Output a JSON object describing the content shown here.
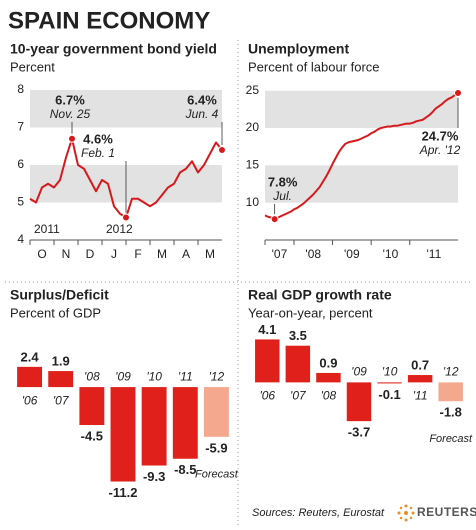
{
  "title": "SPAIN ECONOMY",
  "chart_data": [
    {
      "type": "line",
      "title": "10-year government bond yield",
      "subtitle": "Percent",
      "categories": [
        "O",
        null,
        null,
        null,
        "N",
        null,
        null,
        null,
        "D",
        null,
        null,
        null,
        "J",
        null,
        null,
        null,
        "F",
        null,
        null,
        null,
        "M",
        null,
        null,
        null,
        "A",
        null,
        null,
        null,
        "M",
        null,
        null,
        null,
        null
      ],
      "year_labels": [
        "2011",
        null,
        null,
        null,
        null,
        null,
        null,
        null,
        null,
        null,
        null,
        null,
        "2012",
        null,
        null,
        null,
        null,
        null,
        null,
        null,
        null,
        null,
        null,
        null,
        null,
        null,
        null,
        null,
        null,
        null,
        null,
        null,
        null
      ],
      "values": [
        5.1,
        5.0,
        5.4,
        5.5,
        5.4,
        5.6,
        6.2,
        6.7,
        6.0,
        5.9,
        5.6,
        5.3,
        5.6,
        5.5,
        4.9,
        4.7,
        4.6,
        5.1,
        5.1,
        5.0,
        4.9,
        5.0,
        5.2,
        5.4,
        5.5,
        5.8,
        5.9,
        6.1,
        5.8,
        6.0,
        6.3,
        6.6,
        6.4
      ],
      "value_labels": [
        null,
        null,
        null,
        null,
        null,
        null,
        null,
        "6.7%",
        null,
        null,
        null,
        null,
        null,
        null,
        null,
        null,
        "4.6%",
        null,
        null,
        null,
        null,
        null,
        null,
        null,
        null,
        null,
        null,
        null,
        null,
        null,
        null,
        null,
        "6.4%"
      ],
      "date_labels": [
        null,
        null,
        null,
        null,
        null,
        null,
        null,
        "Nov. 25",
        null,
        null,
        null,
        null,
        null,
        null,
        null,
        null,
        "Feb. 1",
        null,
        null,
        null,
        null,
        null,
        null,
        null,
        null,
        null,
        null,
        null,
        null,
        null,
        null,
        null,
        "Jun. 4"
      ],
      "color": "#d7191c",
      "ylim": [
        4,
        8
      ],
      "yticks": [
        4,
        5,
        6,
        7,
        8
      ],
      "shading": true
    },
    {
      "type": "line",
      "title": "Unemployment",
      "subtitle": "Percent of labour force",
      "categories": [
        "'07",
        null,
        null,
        null,
        null,
        null,
        null,
        null,
        null,
        "'08",
        null,
        null,
        null,
        null,
        null,
        null,
        null,
        null,
        null,
        null,
        null,
        "'09",
        null,
        null,
        null,
        null,
        null,
        null,
        null,
        null,
        null,
        null,
        null,
        "'10",
        null,
        null,
        null,
        null,
        null,
        null,
        null,
        null,
        null,
        null,
        null,
        "'11",
        null,
        null,
        null,
        null,
        null,
        null,
        null,
        null,
        null,
        null,
        null,
        null,
        null,
        null,
        null
      ],
      "values": [
        8.3,
        8.1,
        8.0,
        7.8,
        8.0,
        8.2,
        8.4,
        8.6,
        8.8,
        9.1,
        9.3,
        9.6,
        9.9,
        10.3,
        10.7,
        11.1,
        11.6,
        12.1,
        12.8,
        13.5,
        14.3,
        15.2,
        16.0,
        16.8,
        17.4,
        17.9,
        18.1,
        18.2,
        18.3,
        18.4,
        18.6,
        18.8,
        19.0,
        19.3,
        19.5,
        19.8,
        20.0,
        20.1,
        20.2,
        20.2,
        20.3,
        20.3,
        20.4,
        20.5,
        20.6,
        20.6,
        20.7,
        20.9,
        21.0,
        21.1,
        21.4,
        21.7,
        22.1,
        22.6,
        22.9,
        23.2,
        23.6,
        23.9,
        24.1,
        24.4,
        24.7
      ],
      "value_labels": [
        null,
        null,
        null,
        "7.8%",
        null,
        null,
        null,
        null,
        null,
        null,
        null,
        null,
        null,
        null,
        null,
        null,
        null,
        null,
        null,
        null,
        null,
        null,
        null,
        null,
        null,
        null,
        null,
        null,
        null,
        null,
        null,
        null,
        null,
        null,
        null,
        null,
        null,
        null,
        null,
        null,
        null,
        null,
        null,
        null,
        null,
        null,
        null,
        null,
        null,
        null,
        null,
        null,
        null,
        null,
        null,
        null,
        null,
        null,
        null,
        null,
        "24.7%"
      ],
      "date_labels": [
        null,
        null,
        null,
        "Jul.",
        null,
        null,
        null,
        null,
        null,
        null,
        null,
        null,
        null,
        null,
        null,
        null,
        null,
        null,
        null,
        null,
        null,
        null,
        null,
        null,
        null,
        null,
        null,
        null,
        null,
        null,
        null,
        null,
        null,
        null,
        null,
        null,
        null,
        null,
        null,
        null,
        null,
        null,
        null,
        null,
        null,
        null,
        null,
        null,
        null,
        null,
        null,
        null,
        null,
        null,
        null,
        null,
        null,
        null,
        null,
        null,
        "Apr. '12"
      ],
      "color": "#d7191c",
      "ylim": [
        5,
        25.5
      ],
      "yticks": [
        10,
        15,
        20,
        25
      ],
      "shading": true
    },
    {
      "type": "bar",
      "title": "Surplus/Deficit",
      "subtitle": "Percent of GDP",
      "categories": [
        "'06",
        "'07",
        "'08",
        "'09",
        "'10",
        "'11",
        "'12"
      ],
      "values": [
        2.4,
        1.9,
        -4.5,
        -11.2,
        -9.3,
        -8.5,
        -5.9
      ],
      "colors": [
        "#e0201b",
        "#e0201b",
        "#e0201b",
        "#e0201b",
        "#e0201b",
        "#e0201b",
        "#f4a98f"
      ],
      "annotation": "Forecast",
      "ylim": [
        -12.8,
        4.4
      ]
    },
    {
      "type": "bar",
      "title": "Real GDP growth rate",
      "subtitle": "Year-on-year, percent",
      "categories": [
        "'06",
        "'07",
        "'08",
        "'09",
        "'10",
        "'11",
        "'12"
      ],
      "values": [
        4.1,
        3.5,
        0.9,
        -3.7,
        -0.1,
        0.7,
        -1.8
      ],
      "colors": [
        "#e0201b",
        "#e0201b",
        "#e0201b",
        "#e0201b",
        "#e0201b",
        "#e0201b",
        "#f4a98f"
      ],
      "annotation": "Forecast",
      "ylim": [
        -5.5,
        5
      ]
    }
  ],
  "source": "Sources: Reuters, Eurostat",
  "logo": "REUTERS"
}
